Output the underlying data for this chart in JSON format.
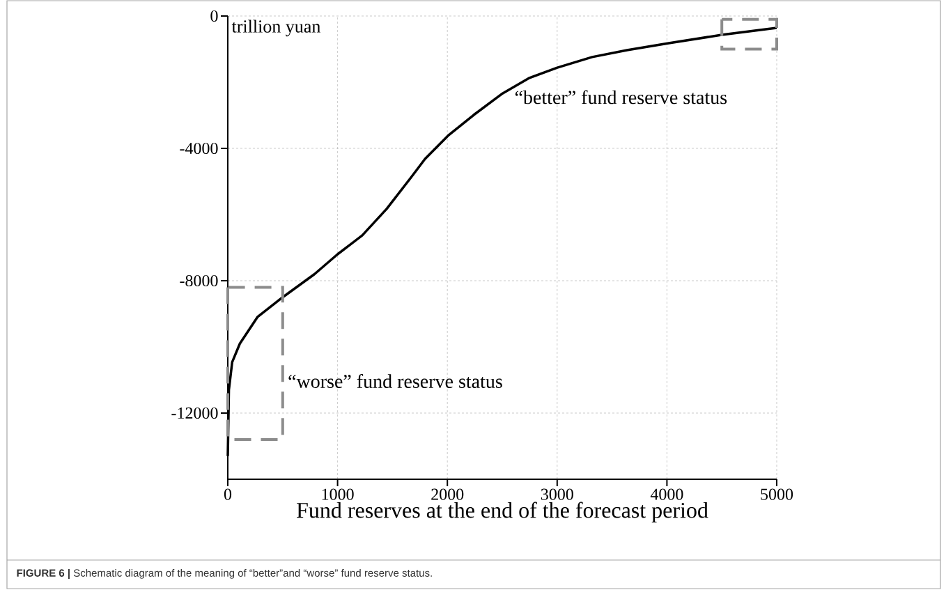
{
  "chart_data": {
    "type": "line",
    "ylabel": "trillion yuan",
    "xlabel": "Fund reserves at the end of the forecast period",
    "xlim": [
      0,
      5000
    ],
    "xticks": [
      0,
      1000,
      2000,
      3000,
      4000,
      5000
    ],
    "ylim": [
      -14000,
      0
    ],
    "yticks": [
      0,
      -4000,
      -8000,
      -12000
    ],
    "grid": true,
    "marker": "none",
    "series": [
      {
        "color": "#000000",
        "line_style": "solid",
        "x": [
          0,
          10,
          40,
          110,
          270,
          500,
          790,
          1000,
          1225,
          1447,
          1669,
          1796,
          2005,
          2240,
          2494,
          2748,
          3001,
          3319,
          3636,
          4016,
          4499,
          5000
        ],
        "values": [
          -13300,
          -11300,
          -10460,
          -9900,
          -9100,
          -8500,
          -7800,
          -7200,
          -6630,
          -5830,
          -4880,
          -4320,
          -3620,
          -2990,
          -2360,
          -1870,
          -1560,
          -1240,
          -1030,
          -820,
          -570,
          -360
        ]
      }
    ],
    "annotations": [
      "“better” fund reserve status",
      "“worse” fund reserve status",
      "**FIGURE 6 |** Schematic diagram of the meaning of “better”and “worse” fund reserve status."
    ]
  }
}
